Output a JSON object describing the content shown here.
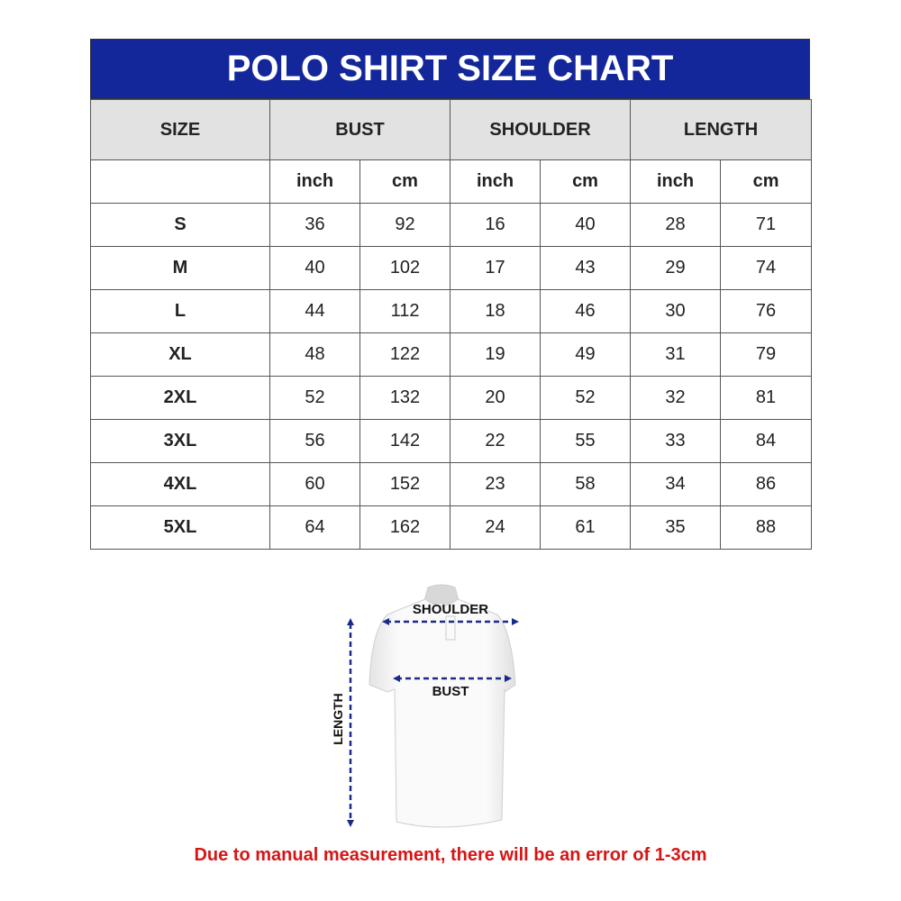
{
  "title": "POLO SHIRT SIZE CHART",
  "headers": {
    "size": "SIZE",
    "bust": "BUST",
    "shoulder": "SHOULDER",
    "length": "LENGTH"
  },
  "units": [
    "inch",
    "cm",
    "inch",
    "cm",
    "inch",
    "cm"
  ],
  "rows": [
    {
      "size": "S",
      "values": [
        "36",
        "92",
        "16",
        "40",
        "28",
        "71"
      ]
    },
    {
      "size": "M",
      "values": [
        "40",
        "102",
        "17",
        "43",
        "29",
        "74"
      ]
    },
    {
      "size": "L",
      "values": [
        "44",
        "112",
        "18",
        "46",
        "30",
        "76"
      ]
    },
    {
      "size": "XL",
      "values": [
        "48",
        "122",
        "19",
        "49",
        "31",
        "79"
      ]
    },
    {
      "size": "2XL",
      "values": [
        "52",
        "132",
        "20",
        "52",
        "32",
        "81"
      ]
    },
    {
      "size": "3XL",
      "values": [
        "56",
        "142",
        "22",
        "55",
        "33",
        "84"
      ]
    },
    {
      "size": "4XL",
      "values": [
        "60",
        "152",
        "23",
        "58",
        "34",
        "86"
      ]
    },
    {
      "size": "5XL",
      "values": [
        "64",
        "162",
        "24",
        "61",
        "35",
        "88"
      ]
    }
  ],
  "diagram": {
    "shoulder_label": "SHOULDER",
    "bust_label": "BUST",
    "length_label": "LENGTH"
  },
  "note": "Due to manual measurement, there will be an error of 1-3cm",
  "colors": {
    "title_bg": "#13279a",
    "header_bg": "#e2e2e2",
    "note": "#d61515",
    "arrows": "#1a2a8a"
  }
}
